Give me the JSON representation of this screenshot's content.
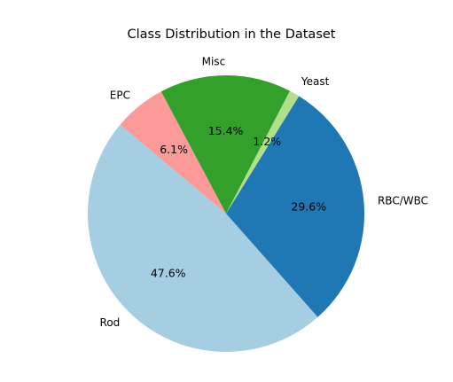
{
  "chart_data": {
    "type": "pie",
    "title": "Class Distribution in the Dataset",
    "start_angle_deg": 140,
    "direction": "counterclockwise",
    "slices": [
      {
        "label": "Rod",
        "value": 47.6,
        "pct_label": "47.6%",
        "color": "#a6cee3"
      },
      {
        "label": "RBC/WBC",
        "value": 29.6,
        "pct_label": "29.6%",
        "color": "#1f78b4"
      },
      {
        "label": "Yeast",
        "value": 1.2,
        "pct_label": "1.2%",
        "color": "#b2df8a"
      },
      {
        "label": "Misc",
        "value": 15.4,
        "pct_label": "15.4%",
        "color": "#33a02c"
      },
      {
        "label": "EPC",
        "value": 6.1,
        "pct_label": "6.1%",
        "color": "#fb9a99"
      }
    ]
  }
}
